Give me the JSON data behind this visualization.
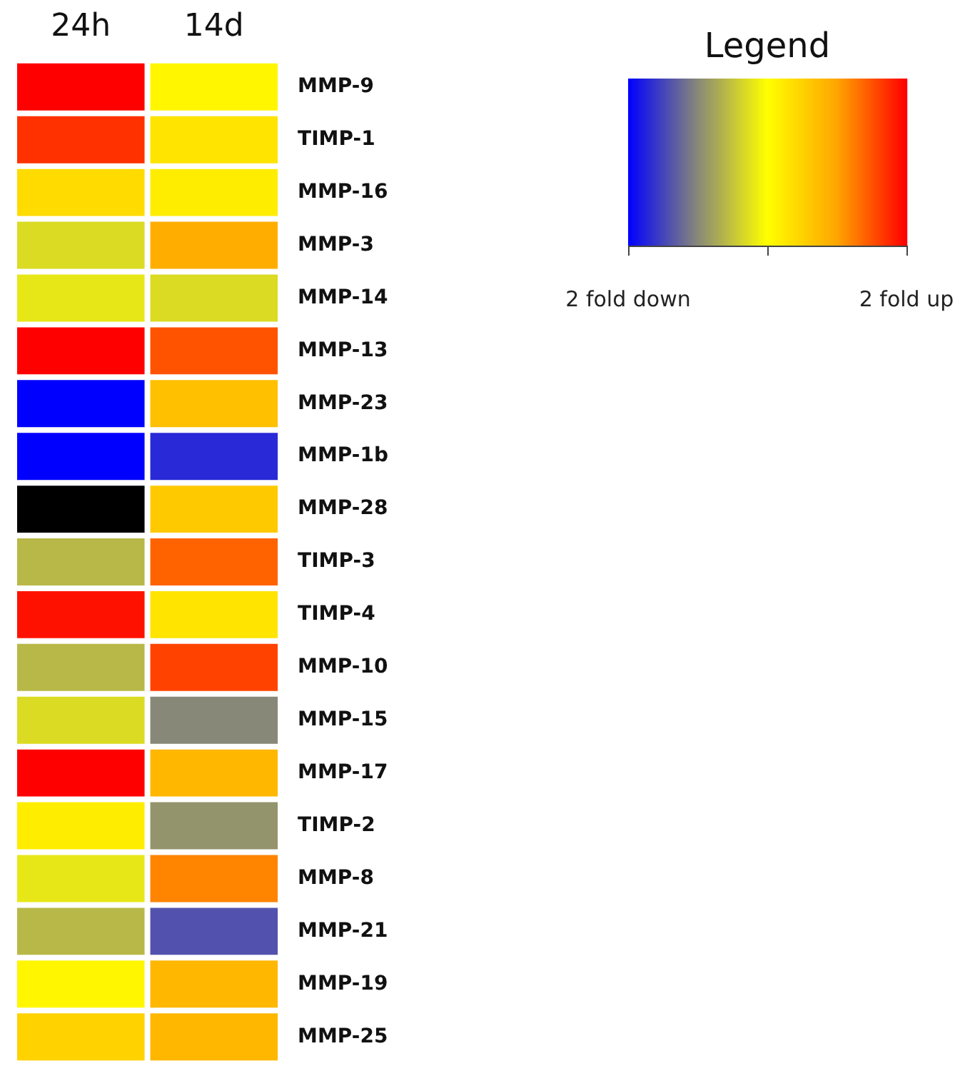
{
  "chart_data": {
    "type": "heatmap",
    "legend_title": "Legend",
    "categories": [
      "24h",
      "14d"
    ],
    "y_categories": [
      "MMP-9",
      "TIMP-1",
      "MMP-16",
      "MMP-3",
      "MMP-14",
      "MMP-13",
      "MMP-23",
      "MMP-1b",
      "MMP-28",
      "TIMP-3",
      "TIMP-4",
      "MMP-10",
      "MMP-15",
      "MMP-17",
      "TIMP-2",
      "MMP-8",
      "MMP-21",
      "MMP-19",
      "MMP-25"
    ],
    "cells": [
      [
        2,
        0.1
      ],
      [
        1.7,
        0.3
      ],
      [
        0.4,
        0.2
      ],
      [
        -0.3,
        0.9
      ],
      [
        -0.2,
        -0.3
      ],
      [
        2,
        1.5
      ],
      [
        -2,
        0.7
      ],
      [
        -2,
        -1.7
      ],
      [
        null,
        0.6
      ],
      [
        -0.6,
        1.4
      ],
      [
        1.9,
        0.3
      ],
      [
        -0.6,
        1.6
      ],
      [
        -0.3,
        -1
      ],
      [
        2,
        0.8
      ],
      [
        0.2,
        -0.9
      ],
      [
        -0.2,
        1.2
      ],
      [
        -0.6,
        -1.4
      ],
      [
        0.1,
        0.8
      ],
      [
        0.5,
        0.8
      ]
    ],
    "clim": [
      -2,
      2
    ],
    "cticks": [
      {
        "value": -2,
        "label": "2 fold down"
      },
      {
        "value": 0,
        "label": null
      },
      {
        "value": 2,
        "label": "2 fold up"
      }
    ]
  }
}
